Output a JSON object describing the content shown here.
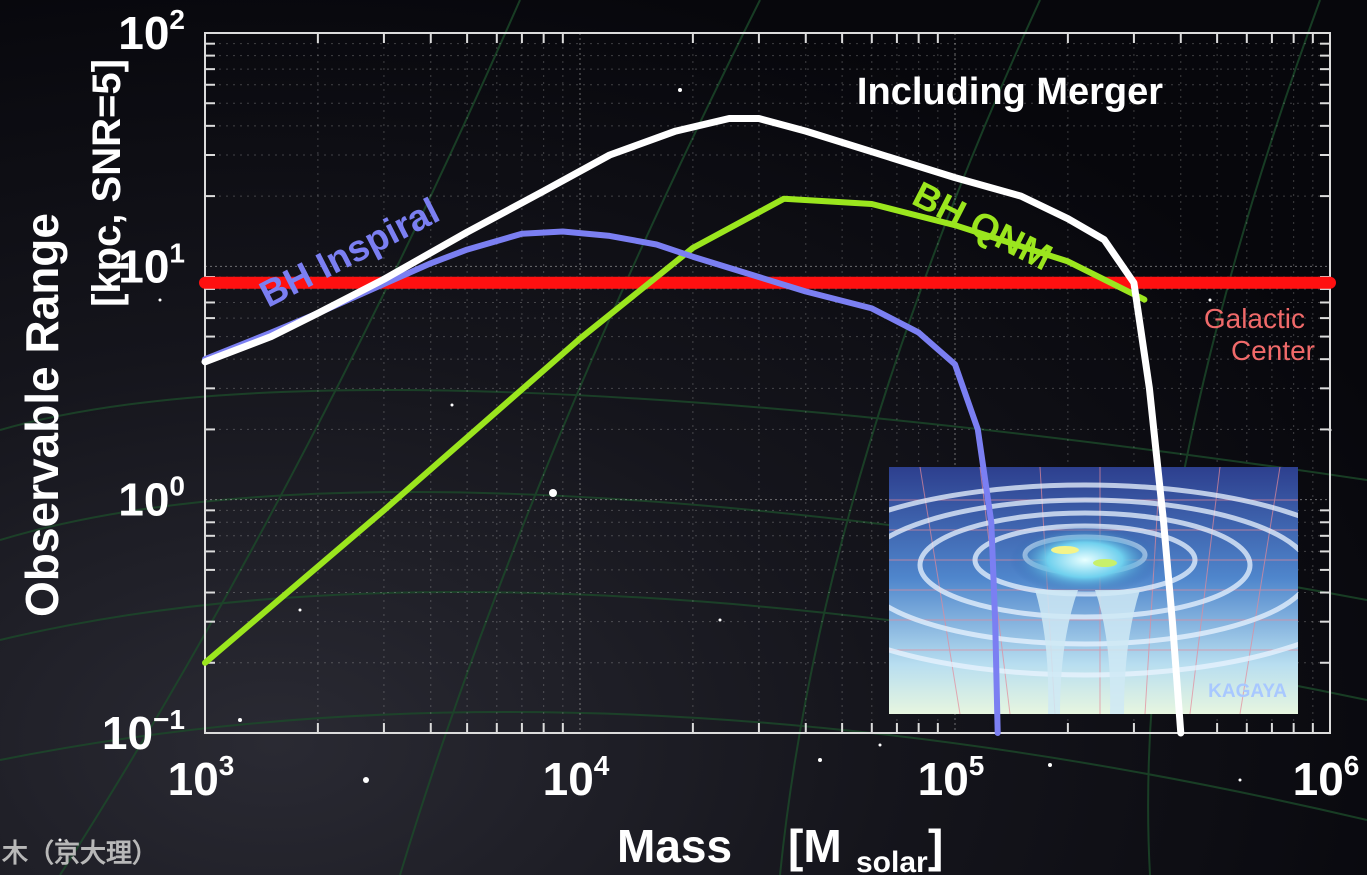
{
  "chart_data": {
    "type": "line",
    "x_scale": "log",
    "y_scale": "log",
    "xlim": [
      1000,
      1000000
    ],
    "ylim": [
      0.1,
      100
    ],
    "x_ticks": [
      {
        "base": "10",
        "exp": "3"
      },
      {
        "base": "10",
        "exp": "4"
      },
      {
        "base": "10",
        "exp": "5"
      },
      {
        "base": "10",
        "exp": "6"
      }
    ],
    "y_ticks": [
      {
        "base": "10",
        "exp": "−1"
      },
      {
        "base": "10",
        "exp": "0"
      },
      {
        "base": "10",
        "exp": "1"
      },
      {
        "base": "10",
        "exp": "2"
      }
    ],
    "xlabel": {
      "main": "Mass",
      "unit_open": "[M",
      "unit_sub": "solar",
      "unit_close": "]"
    },
    "ylabel": {
      "line1": "Observable Range",
      "line2": "[kpc, SNR=5]"
    },
    "grid": true,
    "series": [
      {
        "name": "Including Merger",
        "color": "#ffffff",
        "x": [
          1000,
          1500,
          2000,
          3000,
          5000,
          8000,
          12000,
          18000,
          25000,
          30000,
          40000,
          60000,
          100000,
          150000,
          200000,
          250000,
          300000,
          330000,
          360000,
          380000,
          400000
        ],
        "y": [
          3.9,
          5.0,
          6.3,
          8.8,
          14,
          21,
          30,
          38,
          43,
          43,
          38,
          31,
          24,
          20,
          16,
          13,
          8.5,
          3,
          0.8,
          0.3,
          0.1
        ]
      },
      {
        "name": "BH Inspiral",
        "color": "#7b7ff2",
        "x": [
          1000,
          1500,
          2000,
          3000,
          4000,
          5000,
          7000,
          9000,
          12000,
          16000,
          20000,
          30000,
          40000,
          60000,
          80000,
          100000,
          115000,
          125000,
          128000,
          130000
        ],
        "y": [
          4.0,
          5.2,
          6.3,
          8.4,
          10.3,
          11.8,
          13.8,
          14.1,
          13.5,
          12.4,
          11,
          9,
          7.8,
          6.6,
          5.2,
          3.8,
          2.0,
          0.8,
          0.3,
          0.1
        ]
      },
      {
        "name": "BH QNM",
        "color": "#9be61e",
        "x": [
          1000,
          3000,
          10000,
          20000,
          35000,
          60000,
          100000,
          200000,
          320000
        ],
        "y": [
          0.2,
          0.9,
          4.9,
          12,
          19.5,
          18.5,
          15,
          10.5,
          7.2
        ]
      },
      {
        "name": "Galactic Center",
        "color": "#ff1010",
        "x": [
          1000,
          1000000
        ],
        "y": [
          8.5,
          8.5
        ]
      }
    ],
    "annotations": {
      "merger": "Including Merger",
      "inspiral": "BH Inspiral",
      "qnm": "BH QNM",
      "galactic_line1": "Galactic",
      "galactic_line2": "Center"
    }
  },
  "inset": {
    "credit": "KAGAYA"
  },
  "footer": {
    "author": "木（京大理）"
  }
}
